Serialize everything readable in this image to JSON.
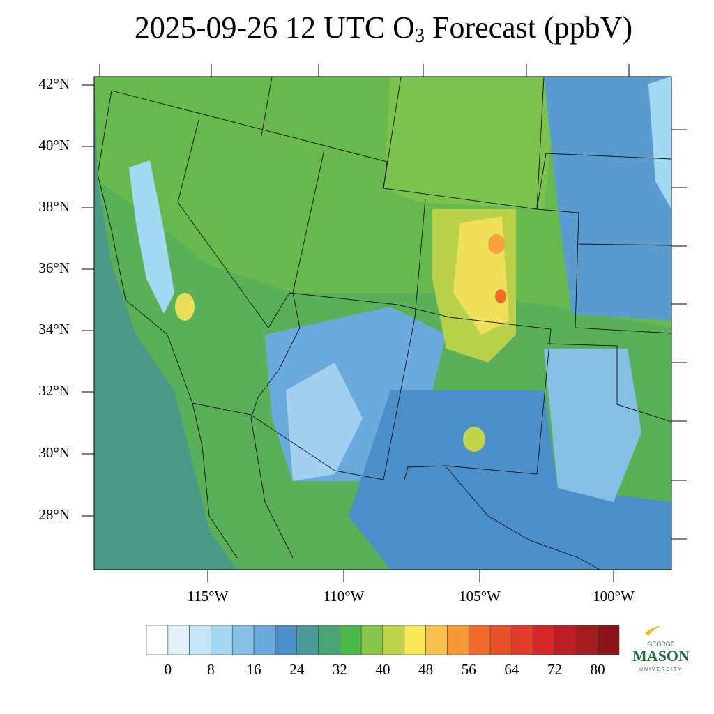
{
  "title": {
    "prefix": "2025-09-26 12 UTC O",
    "subscript": "3",
    "suffix": " Forecast (ppbV)"
  },
  "lat_labels": [
    "42°N",
    "40°N",
    "38°N",
    "36°N",
    "34°N",
    "32°N",
    "30°N",
    "28°N"
  ],
  "lon_labels": [
    "115°W",
    "110°W",
    "105°W",
    "100°W"
  ],
  "colorbar": {
    "ticks": [
      0,
      8,
      16,
      24,
      32,
      40,
      48,
      56,
      64,
      72,
      80
    ],
    "colors": [
      "#ffffff",
      "#e0f0fa",
      "#c4e6f6",
      "#a3d8f2",
      "#86bfe4",
      "#6aaadc",
      "#4a8fca",
      "#4a9a98",
      "#48a572",
      "#4cb848",
      "#86c44c",
      "#c0d44a",
      "#f8e858",
      "#f8c04c",
      "#f69a38",
      "#f06a2c",
      "#e8502a",
      "#e03c28",
      "#d42828",
      "#bc2024",
      "#a41c20",
      "#8c1418"
    ]
  },
  "logo": {
    "top": "GEORGE",
    "main": "MASON",
    "bottom": "UNIVERSITY"
  }
}
